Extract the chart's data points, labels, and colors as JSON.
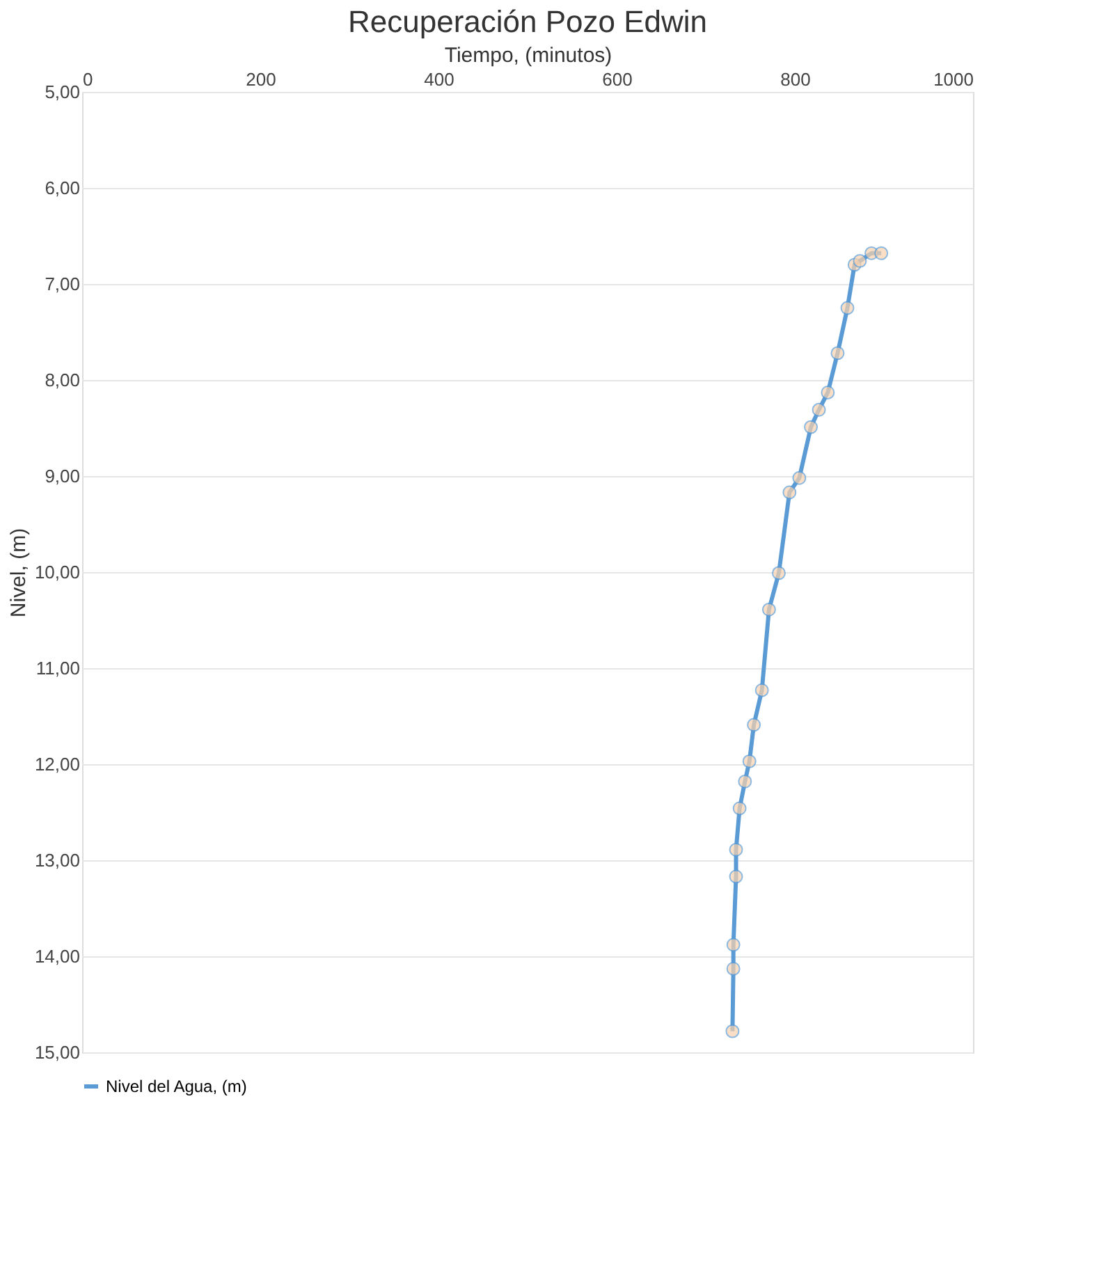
{
  "chart_data": {
    "type": "line",
    "title": "Recuperación Pozo  Edwin",
    "xlabel": "Tiempo, (minutos)",
    "ylabel": "Nivel, (m)",
    "xlim": [
      0,
      1000
    ],
    "xticks": [
      0,
      200,
      400,
      600,
      800,
      1000
    ],
    "ylim": [
      15,
      5
    ],
    "yticks": [
      {
        "value": 5,
        "label": "5,00"
      },
      {
        "value": 6,
        "label": "6,00"
      },
      {
        "value": 7,
        "label": "7,00"
      },
      {
        "value": 8,
        "label": "8,00"
      },
      {
        "value": 9,
        "label": "9,00"
      },
      {
        "value": 10,
        "label": "10,00"
      },
      {
        "value": 11,
        "label": "11,00"
      },
      {
        "value": 12,
        "label": "12,00"
      },
      {
        "value": 13,
        "label": "13,00"
      },
      {
        "value": 14,
        "label": "14,00"
      },
      {
        "value": 15,
        "label": "15,00"
      }
    ],
    "grid": "y",
    "legend": "bottom",
    "marker": "circle",
    "line_style": "solid",
    "series": [
      {
        "name": "Nivel del Agua, (m)",
        "color": "#5b9bd5",
        "x": [
          730,
          731,
          731,
          734,
          734,
          738,
          744,
          749,
          754,
          763,
          771,
          782,
          794,
          805,
          818,
          827,
          837,
          848,
          859,
          867,
          873,
          886,
          897
        ],
        "values": [
          14.78,
          14.13,
          13.88,
          13.17,
          12.89,
          12.46,
          12.18,
          11.97,
          11.59,
          11.23,
          10.39,
          10.01,
          9.17,
          9.02,
          8.49,
          8.31,
          8.13,
          7.72,
          7.25,
          6.8,
          6.76,
          6.68,
          6.68
        ]
      }
    ]
  }
}
